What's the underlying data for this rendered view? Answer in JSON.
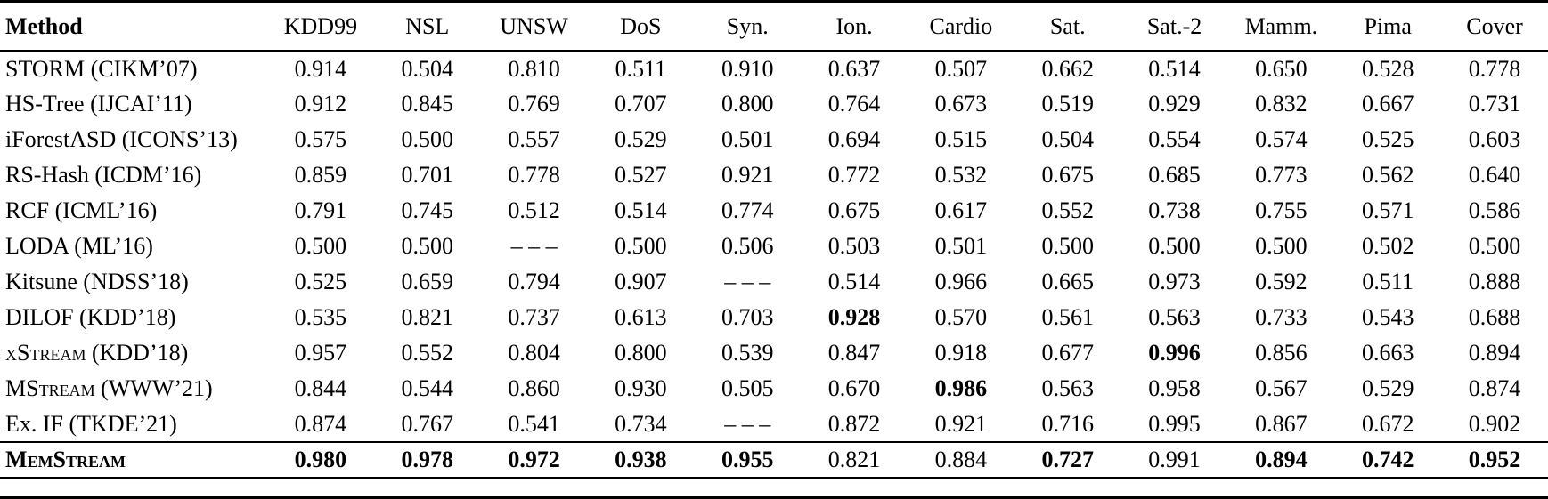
{
  "page": {
    "background_color": "#ffffff",
    "text_color": "#000000"
  },
  "table": {
    "missing_value_marker": "– – –",
    "columns": [
      "Method",
      "KDD99",
      "NSL",
      "UNSW",
      "DoS",
      "Syn.",
      "Ion.",
      "Cardio",
      "Sat.",
      "Sat.-2",
      "Mamm.",
      "Pima",
      "Cover"
    ],
    "rows": [
      {
        "method": "STORM (CIKM’07)",
        "smallcaps": false,
        "bold_method": false,
        "rule_above": false,
        "values": [
          "0.914",
          "0.504",
          "0.810",
          "0.511",
          "0.910",
          "0.637",
          "0.507",
          "0.662",
          "0.514",
          "0.650",
          "0.528",
          "0.778"
        ],
        "bold_value_indices": []
      },
      {
        "method": "HS-Tree (IJCAI’11)",
        "smallcaps": false,
        "bold_method": false,
        "rule_above": false,
        "values": [
          "0.912",
          "0.845",
          "0.769",
          "0.707",
          "0.800",
          "0.764",
          "0.673",
          "0.519",
          "0.929",
          "0.832",
          "0.667",
          "0.731"
        ],
        "bold_value_indices": []
      },
      {
        "method": "iForestASD (ICONS’13)",
        "smallcaps": false,
        "bold_method": false,
        "rule_above": false,
        "values": [
          "0.575",
          "0.500",
          "0.557",
          "0.529",
          "0.501",
          "0.694",
          "0.515",
          "0.504",
          "0.554",
          "0.574",
          "0.525",
          "0.603"
        ],
        "bold_value_indices": []
      },
      {
        "method": "RS-Hash (ICDM’16)",
        "smallcaps": false,
        "bold_method": false,
        "rule_above": false,
        "values": [
          "0.859",
          "0.701",
          "0.778",
          "0.527",
          "0.921",
          "0.772",
          "0.532",
          "0.675",
          "0.685",
          "0.773",
          "0.562",
          "0.640"
        ],
        "bold_value_indices": []
      },
      {
        "method": "RCF (ICML’16)",
        "smallcaps": false,
        "bold_method": false,
        "rule_above": false,
        "values": [
          "0.791",
          "0.745",
          "0.512",
          "0.514",
          "0.774",
          "0.675",
          "0.617",
          "0.552",
          "0.738",
          "0.755",
          "0.571",
          "0.586"
        ],
        "bold_value_indices": []
      },
      {
        "method": "LODA (ML’16)",
        "smallcaps": false,
        "bold_method": false,
        "rule_above": false,
        "values": [
          "0.500",
          "0.500",
          "– – –",
          "0.500",
          "0.506",
          "0.503",
          "0.501",
          "0.500",
          "0.500",
          "0.500",
          "0.502",
          "0.500"
        ],
        "bold_value_indices": []
      },
      {
        "method": "Kitsune (NDSS’18)",
        "smallcaps": false,
        "bold_method": false,
        "rule_above": false,
        "values": [
          "0.525",
          "0.659",
          "0.794",
          "0.907",
          "– – –",
          "0.514",
          "0.966",
          "0.665",
          "0.973",
          "0.592",
          "0.511",
          "0.888"
        ],
        "bold_value_indices": []
      },
      {
        "method": "DILOF (KDD’18)",
        "smallcaps": false,
        "bold_method": false,
        "rule_above": false,
        "values": [
          "0.535",
          "0.821",
          "0.737",
          "0.613",
          "0.703",
          "0.928",
          "0.570",
          "0.561",
          "0.563",
          "0.733",
          "0.543",
          "0.688"
        ],
        "bold_value_indices": [
          5
        ]
      },
      {
        "method": "xStream (KDD’18)",
        "smallcaps": true,
        "bold_method": false,
        "rule_above": false,
        "values": [
          "0.957",
          "0.552",
          "0.804",
          "0.800",
          "0.539",
          "0.847",
          "0.918",
          "0.677",
          "0.996",
          "0.856",
          "0.663",
          "0.894"
        ],
        "bold_value_indices": [
          8
        ]
      },
      {
        "method": "MStream (WWW’21)",
        "smallcaps": true,
        "bold_method": false,
        "rule_above": false,
        "values": [
          "0.844",
          "0.544",
          "0.860",
          "0.930",
          "0.505",
          "0.670",
          "0.986",
          "0.563",
          "0.958",
          "0.567",
          "0.529",
          "0.874"
        ],
        "bold_value_indices": [
          6
        ]
      },
      {
        "method": "Ex. IF (TKDE’21)",
        "smallcaps": false,
        "bold_method": false,
        "rule_above": false,
        "values": [
          "0.874",
          "0.767",
          "0.541",
          "0.734",
          "– – –",
          "0.872",
          "0.921",
          "0.716",
          "0.995",
          "0.867",
          "0.672",
          "0.902"
        ],
        "bold_value_indices": []
      },
      {
        "method": "MemStream",
        "smallcaps": true,
        "bold_method": true,
        "rule_above": true,
        "values": [
          "0.980",
          "0.978",
          "0.972",
          "0.938",
          "0.955",
          "0.821",
          "0.884",
          "0.727",
          "0.991",
          "0.894",
          "0.742",
          "0.952"
        ],
        "bold_value_indices": [
          0,
          1,
          2,
          3,
          4,
          7,
          9,
          10,
          11
        ]
      }
    ]
  }
}
